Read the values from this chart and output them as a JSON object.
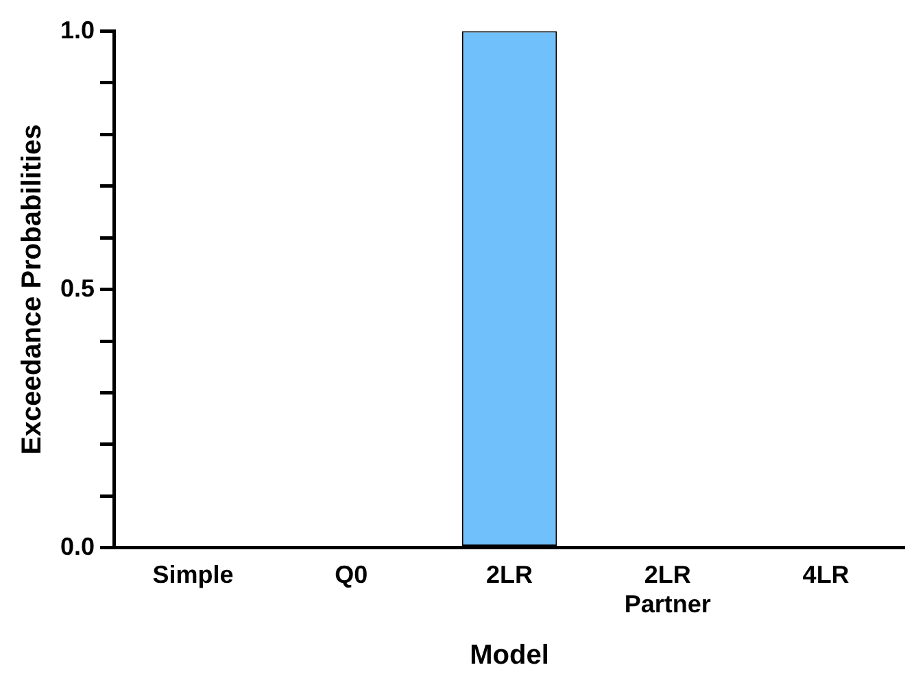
{
  "chart_data": {
    "type": "bar",
    "xlabel": "Model",
    "ylabel": "Exceedance Probabilities",
    "categories": [
      "Simple",
      "Q0",
      "2LR",
      "2LR\nPartner",
      "4LR"
    ],
    "values": [
      0,
      0,
      1,
      0,
      0
    ],
    "color": "#70c0fc",
    "ylim": [
      0,
      1
    ],
    "yticks": [
      {
        "value": 0,
        "label": "0.0"
      },
      {
        "value": 0.1,
        "label": null
      },
      {
        "value": 0.2,
        "label": null
      },
      {
        "value": 0.3,
        "label": null
      },
      {
        "value": 0.4,
        "label": null
      },
      {
        "value": 0.5,
        "label": "0.5"
      },
      {
        "value": 0.6,
        "label": null
      },
      {
        "value": 0.7,
        "label": null
      },
      {
        "value": 0.8,
        "label": null
      },
      {
        "value": 0.9,
        "label": null
      },
      {
        "value": 1,
        "label": "1.0"
      }
    ],
    "grid": false,
    "legend": false
  }
}
